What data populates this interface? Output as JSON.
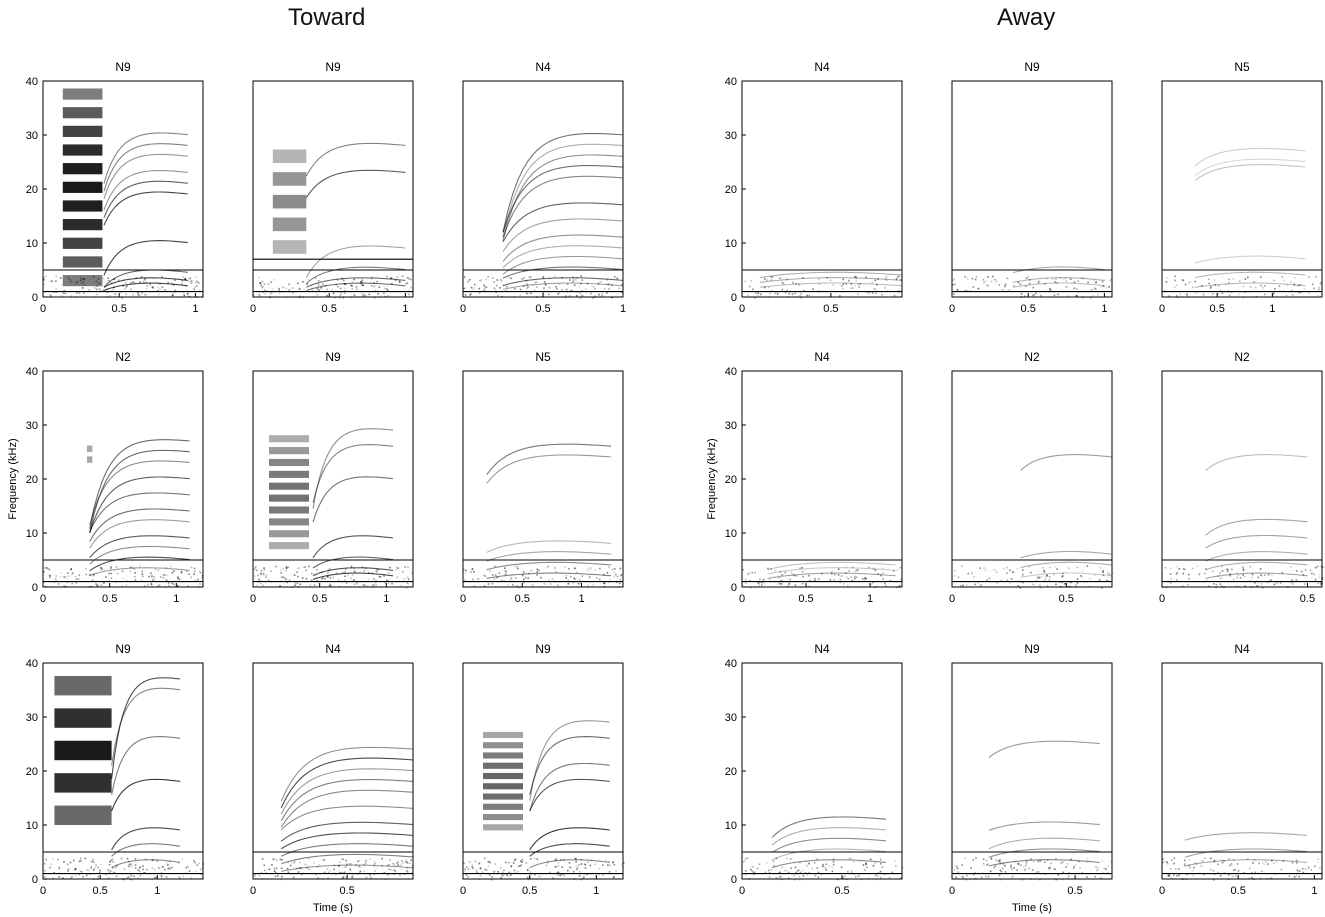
{
  "figure": {
    "group_titles": [
      "Toward",
      "Away"
    ],
    "shared_xlabel": "Time (s)",
    "shared_ylabel": "Frequency (kHz)"
  },
  "chart_data": [
    {
      "type": "heatmap",
      "group": "Toward",
      "title": "N9",
      "xlim": [
        0,
        1.05
      ],
      "ylim": [
        0,
        40
      ],
      "xticks": [
        0,
        0.5,
        1
      ],
      "yticks": [
        0,
        10,
        20,
        30,
        40
      ],
      "ylabel": "",
      "xlabel": "",
      "threshold_lines_khz": [
        5,
        1
      ],
      "stripes": {
        "t": [
          0.13,
          0.39
        ],
        "f": [
          2,
          40
        ],
        "n": 11,
        "d": 0.9
      },
      "onset": 0.4,
      "contours": {
        "f": [
          10,
          4.5,
          3,
          2,
          26,
          28,
          30,
          23,
          21,
          19
        ],
        "k": [
          0.6,
          0.6,
          0.4,
          0.4,
          0.3,
          0.3,
          0.3,
          0.3,
          0.3,
          0.3
        ],
        "t1": 0.95,
        "d": 0.8
      }
    },
    {
      "type": "heatmap",
      "group": "Toward",
      "title": "N9",
      "xlim": [
        0,
        1.05
      ],
      "ylim": [
        0,
        40
      ],
      "xticks": [
        0,
        0.5,
        1
      ],
      "yticks": [],
      "ylabel": "",
      "xlabel": "",
      "threshold_lines_khz": [
        7,
        5,
        1
      ],
      "stripes": {
        "t": [
          0.13,
          0.35
        ],
        "f": [
          8,
          29
        ],
        "n": 5,
        "d": 0.45
      },
      "onset": 0.35,
      "contours": {
        "f": [
          9,
          5,
          3,
          2,
          28,
          23
        ],
        "k": [
          0.6,
          0.5,
          0.4,
          0.4,
          0.2,
          0.2
        ],
        "t1": 1.0,
        "d": 0.7
      }
    },
    {
      "type": "heatmap",
      "group": "Toward",
      "title": "N4",
      "xlim": [
        0,
        1
      ],
      "ylim": [
        0,
        40
      ],
      "xticks": [
        0,
        0.5,
        1
      ],
      "yticks": [],
      "ylabel": "",
      "xlabel": "",
      "threshold_lines_khz": [
        5,
        1
      ],
      "stripes": null,
      "onset": 0.25,
      "contours": {
        "f": [
          30,
          28,
          26,
          24,
          22,
          17,
          14,
          11,
          9,
          7,
          5,
          3,
          2
        ],
        "k": [
          0.6,
          0.6,
          0.6,
          0.5,
          0.5,
          0.4,
          0.4,
          0.4,
          0.4,
          0.4,
          0.3,
          0.3,
          0.3
        ],
        "t1": 1.0,
        "d": 0.65
      }
    },
    {
      "type": "heatmap",
      "group": "Away",
      "title": "N4",
      "xlim": [
        0,
        0.9
      ],
      "ylim": [
        0,
        40
      ],
      "xticks": [
        0,
        0.5
      ],
      "yticks": [
        0,
        10,
        20,
        30,
        40
      ],
      "ylabel": "",
      "xlabel": "",
      "threshold_lines_khz": [
        5,
        1
      ],
      "stripes": null,
      "onset": 0.1,
      "contours": {
        "f": [
          4,
          3,
          2
        ],
        "k": [
          0.1,
          0.1,
          0.1
        ],
        "t1": 0.9,
        "d": 0.35
      }
    },
    {
      "type": "heatmap",
      "group": "Away",
      "title": "N9",
      "xlim": [
        0,
        1.05
      ],
      "ylim": [
        0,
        40
      ],
      "xticks": [
        0,
        0.5,
        1
      ],
      "yticks": [],
      "ylabel": "",
      "xlabel": "",
      "threshold_lines_khz": [
        5,
        1
      ],
      "stripes": null,
      "onset": 0.4,
      "contours": {
        "f": [
          5,
          3,
          2
        ],
        "k": [
          0.1,
          0.1,
          0.1
        ],
        "t1": 1.0,
        "d": 0.35
      }
    },
    {
      "type": "heatmap",
      "group": "Away",
      "title": "N5",
      "xlim": [
        0,
        1.45
      ],
      "ylim": [
        0,
        40
      ],
      "xticks": [
        0,
        0.5,
        1
      ],
      "yticks": [],
      "ylabel": "",
      "xlabel": "",
      "threshold_lines_khz": [
        5,
        1
      ],
      "stripes": null,
      "onset": 0.3,
      "contours": {
        "f": [
          27,
          25,
          24,
          7,
          4,
          2
        ],
        "k": [
          0.1,
          0.1,
          0.1,
          0.1,
          0.1,
          0.1
        ],
        "t1": 1.3,
        "d": 0.3
      }
    },
    {
      "type": "heatmap",
      "group": "Toward",
      "title": "N2",
      "xlim": [
        0,
        1.2
      ],
      "ylim": [
        0,
        40
      ],
      "xticks": [
        0,
        0.5,
        1
      ],
      "yticks": [
        0,
        10,
        20,
        30,
        40
      ],
      "ylabel": "Frequency (kHz)",
      "xlabel": "",
      "threshold_lines_khz": [
        5,
        1
      ],
      "stripes": {
        "t": [
          0.33,
          0.37
        ],
        "f": [
          23,
          27
        ],
        "n": 2,
        "d": 0.4
      },
      "onset": 0.35,
      "contours": {
        "f": [
          27,
          25,
          23,
          20,
          17,
          14,
          12,
          9,
          7,
          5,
          3
        ],
        "k": [
          0.6,
          0.6,
          0.5,
          0.5,
          0.4,
          0.4,
          0.4,
          0.4,
          0.4,
          0.4,
          0.3
        ],
        "t1": 1.1,
        "d": 0.7
      }
    },
    {
      "type": "heatmap",
      "group": "Toward",
      "title": "N9",
      "xlim": [
        0,
        1.2
      ],
      "ylim": [
        0,
        40
      ],
      "xticks": [
        0,
        0.5,
        1
      ],
      "yticks": [],
      "ylabel": "",
      "xlabel": "",
      "threshold_lines_khz": [
        5,
        1
      ],
      "stripes": {
        "t": [
          0.12,
          0.42
        ],
        "f": [
          7,
          29
        ],
        "n": 10,
        "d": 0.55
      },
      "onset": 0.45,
      "contours": {
        "f": [
          29,
          26,
          20,
          9,
          5,
          3,
          2
        ],
        "k": [
          0.5,
          0.4,
          0.4,
          0.4,
          0.3,
          0.3,
          0.3
        ],
        "t1": 1.05,
        "d": 0.8
      }
    },
    {
      "type": "heatmap",
      "group": "Toward",
      "title": "N5",
      "xlim": [
        0,
        1.35
      ],
      "ylim": [
        0,
        40
      ],
      "xticks": [
        0,
        0.5,
        1
      ],
      "yticks": [],
      "ylabel": "",
      "xlabel": "",
      "threshold_lines_khz": [
        5,
        1
      ],
      "stripes": null,
      "onset": 0.2,
      "contours": {
        "f": [
          26,
          24,
          8,
          6,
          4,
          2
        ],
        "k": [
          0.2,
          0.2,
          0.2,
          0.2,
          0.2,
          0.2
        ],
        "t1": 1.25,
        "d": 0.55
      }
    },
    {
      "type": "heatmap",
      "group": "Away",
      "title": "N4",
      "xlim": [
        0,
        1.25
      ],
      "ylim": [
        0,
        40
      ],
      "xticks": [
        0,
        0.5,
        1
      ],
      "yticks": [
        0,
        10,
        20,
        30,
        40
      ],
      "ylabel": "Frequency (kHz)",
      "xlabel": "",
      "threshold_lines_khz": [
        5,
        1
      ],
      "stripes": null,
      "onset": 0.2,
      "contours": {
        "f": [
          4,
          3,
          2
        ],
        "k": [
          0.2,
          0.2,
          0.2
        ],
        "t1": 1.2,
        "d": 0.4
      }
    },
    {
      "type": "heatmap",
      "group": "Away",
      "title": "N2",
      "xlim": [
        0,
        0.7
      ],
      "ylim": [
        0,
        40
      ],
      "xticks": [
        0,
        0.5
      ],
      "yticks": [],
      "ylabel": "",
      "xlabel": "",
      "threshold_lines_khz": [
        5,
        1
      ],
      "stripes": null,
      "onset": 0.3,
      "contours": {
        "f": [
          24,
          6,
          4,
          2
        ],
        "k": [
          0.1,
          0.1,
          0.1,
          0.1
        ],
        "t1": 0.7,
        "d": 0.4
      }
    },
    {
      "type": "heatmap",
      "group": "Away",
      "title": "N2",
      "xlim": [
        0,
        0.55
      ],
      "ylim": [
        0,
        40
      ],
      "xticks": [
        0,
        0.5
      ],
      "yticks": [],
      "ylabel": "",
      "xlabel": "",
      "threshold_lines_khz": [
        5,
        1
      ],
      "stripes": null,
      "onset": 0.15,
      "contours": {
        "f": [
          24,
          12,
          9,
          6,
          4,
          2
        ],
        "k": [
          0.1,
          0.2,
          0.2,
          0.2,
          0.2,
          0.2
        ],
        "t1": 0.5,
        "d": 0.5
      }
    },
    {
      "type": "heatmap",
      "group": "Toward",
      "title": "N9",
      "xlim": [
        0,
        1.4
      ],
      "ylim": [
        0,
        40
      ],
      "xticks": [
        0,
        0.5,
        1
      ],
      "yticks": [
        0,
        10,
        20,
        30,
        40
      ],
      "ylabel": "",
      "xlabel": "",
      "threshold_lines_khz": [
        5,
        1
      ],
      "stripes": {
        "t": [
          0.1,
          0.6
        ],
        "f": [
          10,
          40
        ],
        "n": 5,
        "d": 0.9
      },
      "onset": 0.6,
      "contours": {
        "f": [
          37,
          35,
          26,
          18,
          9,
          6,
          3
        ],
        "k": [
          0.5,
          0.4,
          0.4,
          0.3,
          0.4,
          0.3,
          0.3
        ],
        "t1": 1.2,
        "d": 0.8
      }
    },
    {
      "type": "heatmap",
      "group": "Toward",
      "title": "N4",
      "xlim": [
        0,
        0.85
      ],
      "ylim": [
        0,
        40
      ],
      "xticks": [
        0,
        0.5
      ],
      "yticks": [],
      "ylabel": "",
      "xlabel": "Time (s)",
      "threshold_lines_khz": [
        5,
        1
      ],
      "stripes": null,
      "onset": 0.15,
      "contours": {
        "f": [
          24,
          22,
          20,
          18,
          16,
          13,
          10,
          8,
          6,
          4,
          2
        ],
        "k": [
          0.4,
          0.4,
          0.4,
          0.4,
          0.4,
          0.3,
          0.3,
          0.3,
          0.3,
          0.3,
          0.3
        ],
        "t1": 0.85,
        "d": 0.75
      }
    },
    {
      "type": "heatmap",
      "group": "Toward",
      "title": "N9",
      "xlim": [
        0,
        1.2
      ],
      "ylim": [
        0,
        40
      ],
      "xticks": [
        0,
        0.5,
        1
      ],
      "yticks": [],
      "ylabel": "",
      "xlabel": "",
      "threshold_lines_khz": [
        5,
        1
      ],
      "stripes": {
        "t": [
          0.15,
          0.45
        ],
        "f": [
          9,
          28
        ],
        "n": 10,
        "d": 0.6
      },
      "onset": 0.5,
      "contours": {
        "f": [
          29,
          26,
          21,
          18,
          9,
          6,
          3
        ],
        "k": [
          0.5,
          0.4,
          0.4,
          0.3,
          0.4,
          0.3,
          0.3
        ],
        "t1": 1.1,
        "d": 0.8
      }
    },
    {
      "type": "heatmap",
      "group": "Away",
      "title": "N4",
      "xlim": [
        0,
        0.8
      ],
      "ylim": [
        0,
        40
      ],
      "xticks": [
        0,
        0.5
      ],
      "yticks": [
        0,
        10,
        20,
        30,
        40
      ],
      "ylabel": "",
      "xlabel": "",
      "threshold_lines_khz": [
        5,
        1
      ],
      "stripes": null,
      "onset": 0.15,
      "contours": {
        "f": [
          11,
          9,
          7,
          5,
          3
        ],
        "k": [
          0.3,
          0.3,
          0.3,
          0.3,
          0.3
        ],
        "t1": 0.72,
        "d": 0.55
      }
    },
    {
      "type": "heatmap",
      "group": "Away",
      "title": "N9",
      "xlim": [
        0,
        0.65
      ],
      "ylim": [
        0,
        40
      ],
      "xticks": [
        0,
        0.5
      ],
      "yticks": [],
      "ylabel": "",
      "xlabel": "Time (s)",
      "threshold_lines_khz": [
        5,
        1
      ],
      "stripes": null,
      "onset": 0.15,
      "contours": {
        "f": [
          25,
          10,
          7,
          5,
          3
        ],
        "k": [
          0.1,
          0.1,
          0.2,
          0.2,
          0.2
        ],
        "t1": 0.6,
        "d": 0.5
      }
    },
    {
      "type": "heatmap",
      "group": "Away",
      "title": "N4",
      "xlim": [
        0,
        1.05
      ],
      "ylim": [
        0,
        40
      ],
      "xticks": [
        0,
        0.5,
        1
      ],
      "yticks": [],
      "ylabel": "",
      "xlabel": "",
      "threshold_lines_khz": [
        5,
        1
      ],
      "stripes": null,
      "onset": 0.15,
      "contours": {
        "f": [
          8,
          5,
          3
        ],
        "k": [
          0.1,
          0.2,
          0.2
        ],
        "t1": 0.95,
        "d": 0.5
      }
    }
  ]
}
